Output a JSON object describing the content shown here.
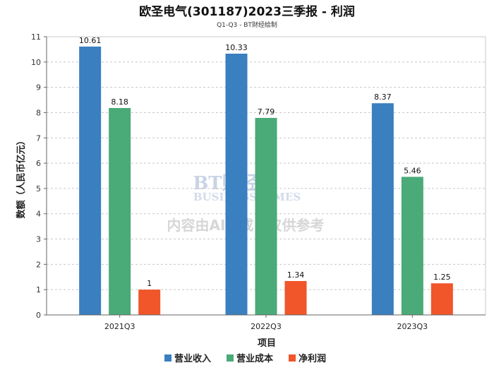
{
  "chart_data": {
    "type": "bar",
    "title": "欧圣电气(301187)2023三季报 - 利润",
    "subtitle": "Q1-Q3 - BT财经绘制",
    "xlabel": "项目",
    "ylabel": "数额（人民币亿元）",
    "categories": [
      "2021Q3",
      "2022Q3",
      "2023Q3"
    ],
    "series": [
      {
        "name": "营业收入",
        "color": "#3a7fbf",
        "values": [
          10.61,
          10.33,
          8.37
        ],
        "labels": [
          "10.61",
          "10.33",
          "8.37"
        ]
      },
      {
        "name": "营业成本",
        "color": "#4aaa78",
        "values": [
          8.18,
          7.79,
          5.46
        ],
        "labels": [
          "8.18",
          "7.79",
          "5.46"
        ]
      },
      {
        "name": "净利润",
        "color": "#f0562a",
        "values": [
          1,
          1.34,
          1.25
        ],
        "labels": [
          "1",
          "1.34",
          "1.25"
        ]
      }
    ],
    "ylim": [
      0,
      11
    ],
    "yticks": [
      0,
      1,
      2,
      3,
      4,
      5,
      6,
      7,
      8,
      9,
      10,
      11
    ],
    "grid": true,
    "legend_position": "bottom"
  },
  "watermark": {
    "brand": "BT财经",
    "brand_en": "BUSINESS TIMES",
    "notice": "内容由AI生成，仅供参考"
  }
}
